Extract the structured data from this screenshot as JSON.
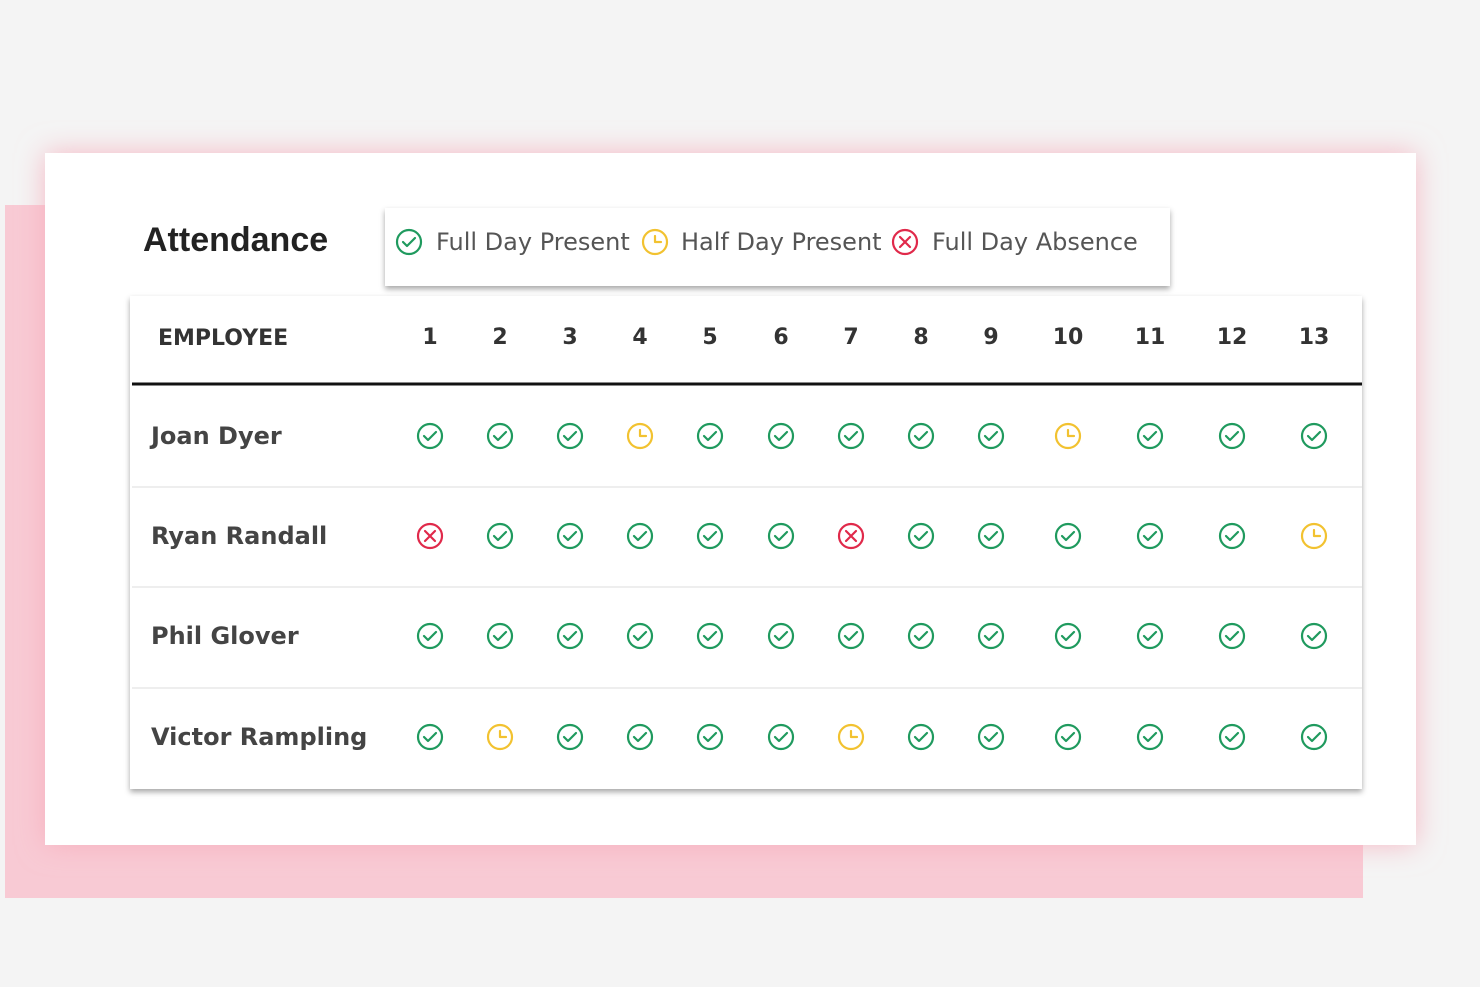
{
  "title": "Attendance",
  "legend": [
    {
      "label": "Full Day Present",
      "color": "#1f9a5e"
    },
    {
      "label": "Half Day Present",
      "color": "#f2c230"
    },
    {
      "label": "Full Day Absence",
      "color": "#e0294a"
    }
  ],
  "table": {
    "header": "EMPLOYEE",
    "days": [
      1,
      2,
      3,
      4,
      5,
      6,
      7,
      8,
      9,
      10,
      11,
      12,
      13
    ],
    "rows": [
      {
        "name": "Joan Dyer",
        "status": [
          0,
          0,
          0,
          1,
          0,
          0,
          0,
          0,
          0,
          1,
          0,
          0,
          0
        ]
      },
      {
        "name": "Ryan Randall",
        "status": [
          2,
          0,
          0,
          0,
          0,
          0,
          2,
          0,
          0,
          0,
          0,
          0,
          1
        ]
      },
      {
        "name": "Phil Glover",
        "status": [
          0,
          0,
          0,
          0,
          0,
          0,
          0,
          0,
          0,
          0,
          0,
          0,
          0
        ]
      },
      {
        "name": "Victor Rampling",
        "status": [
          0,
          1,
          0,
          0,
          0,
          0,
          1,
          0,
          0,
          0,
          0,
          0,
          0
        ]
      }
    ]
  }
}
